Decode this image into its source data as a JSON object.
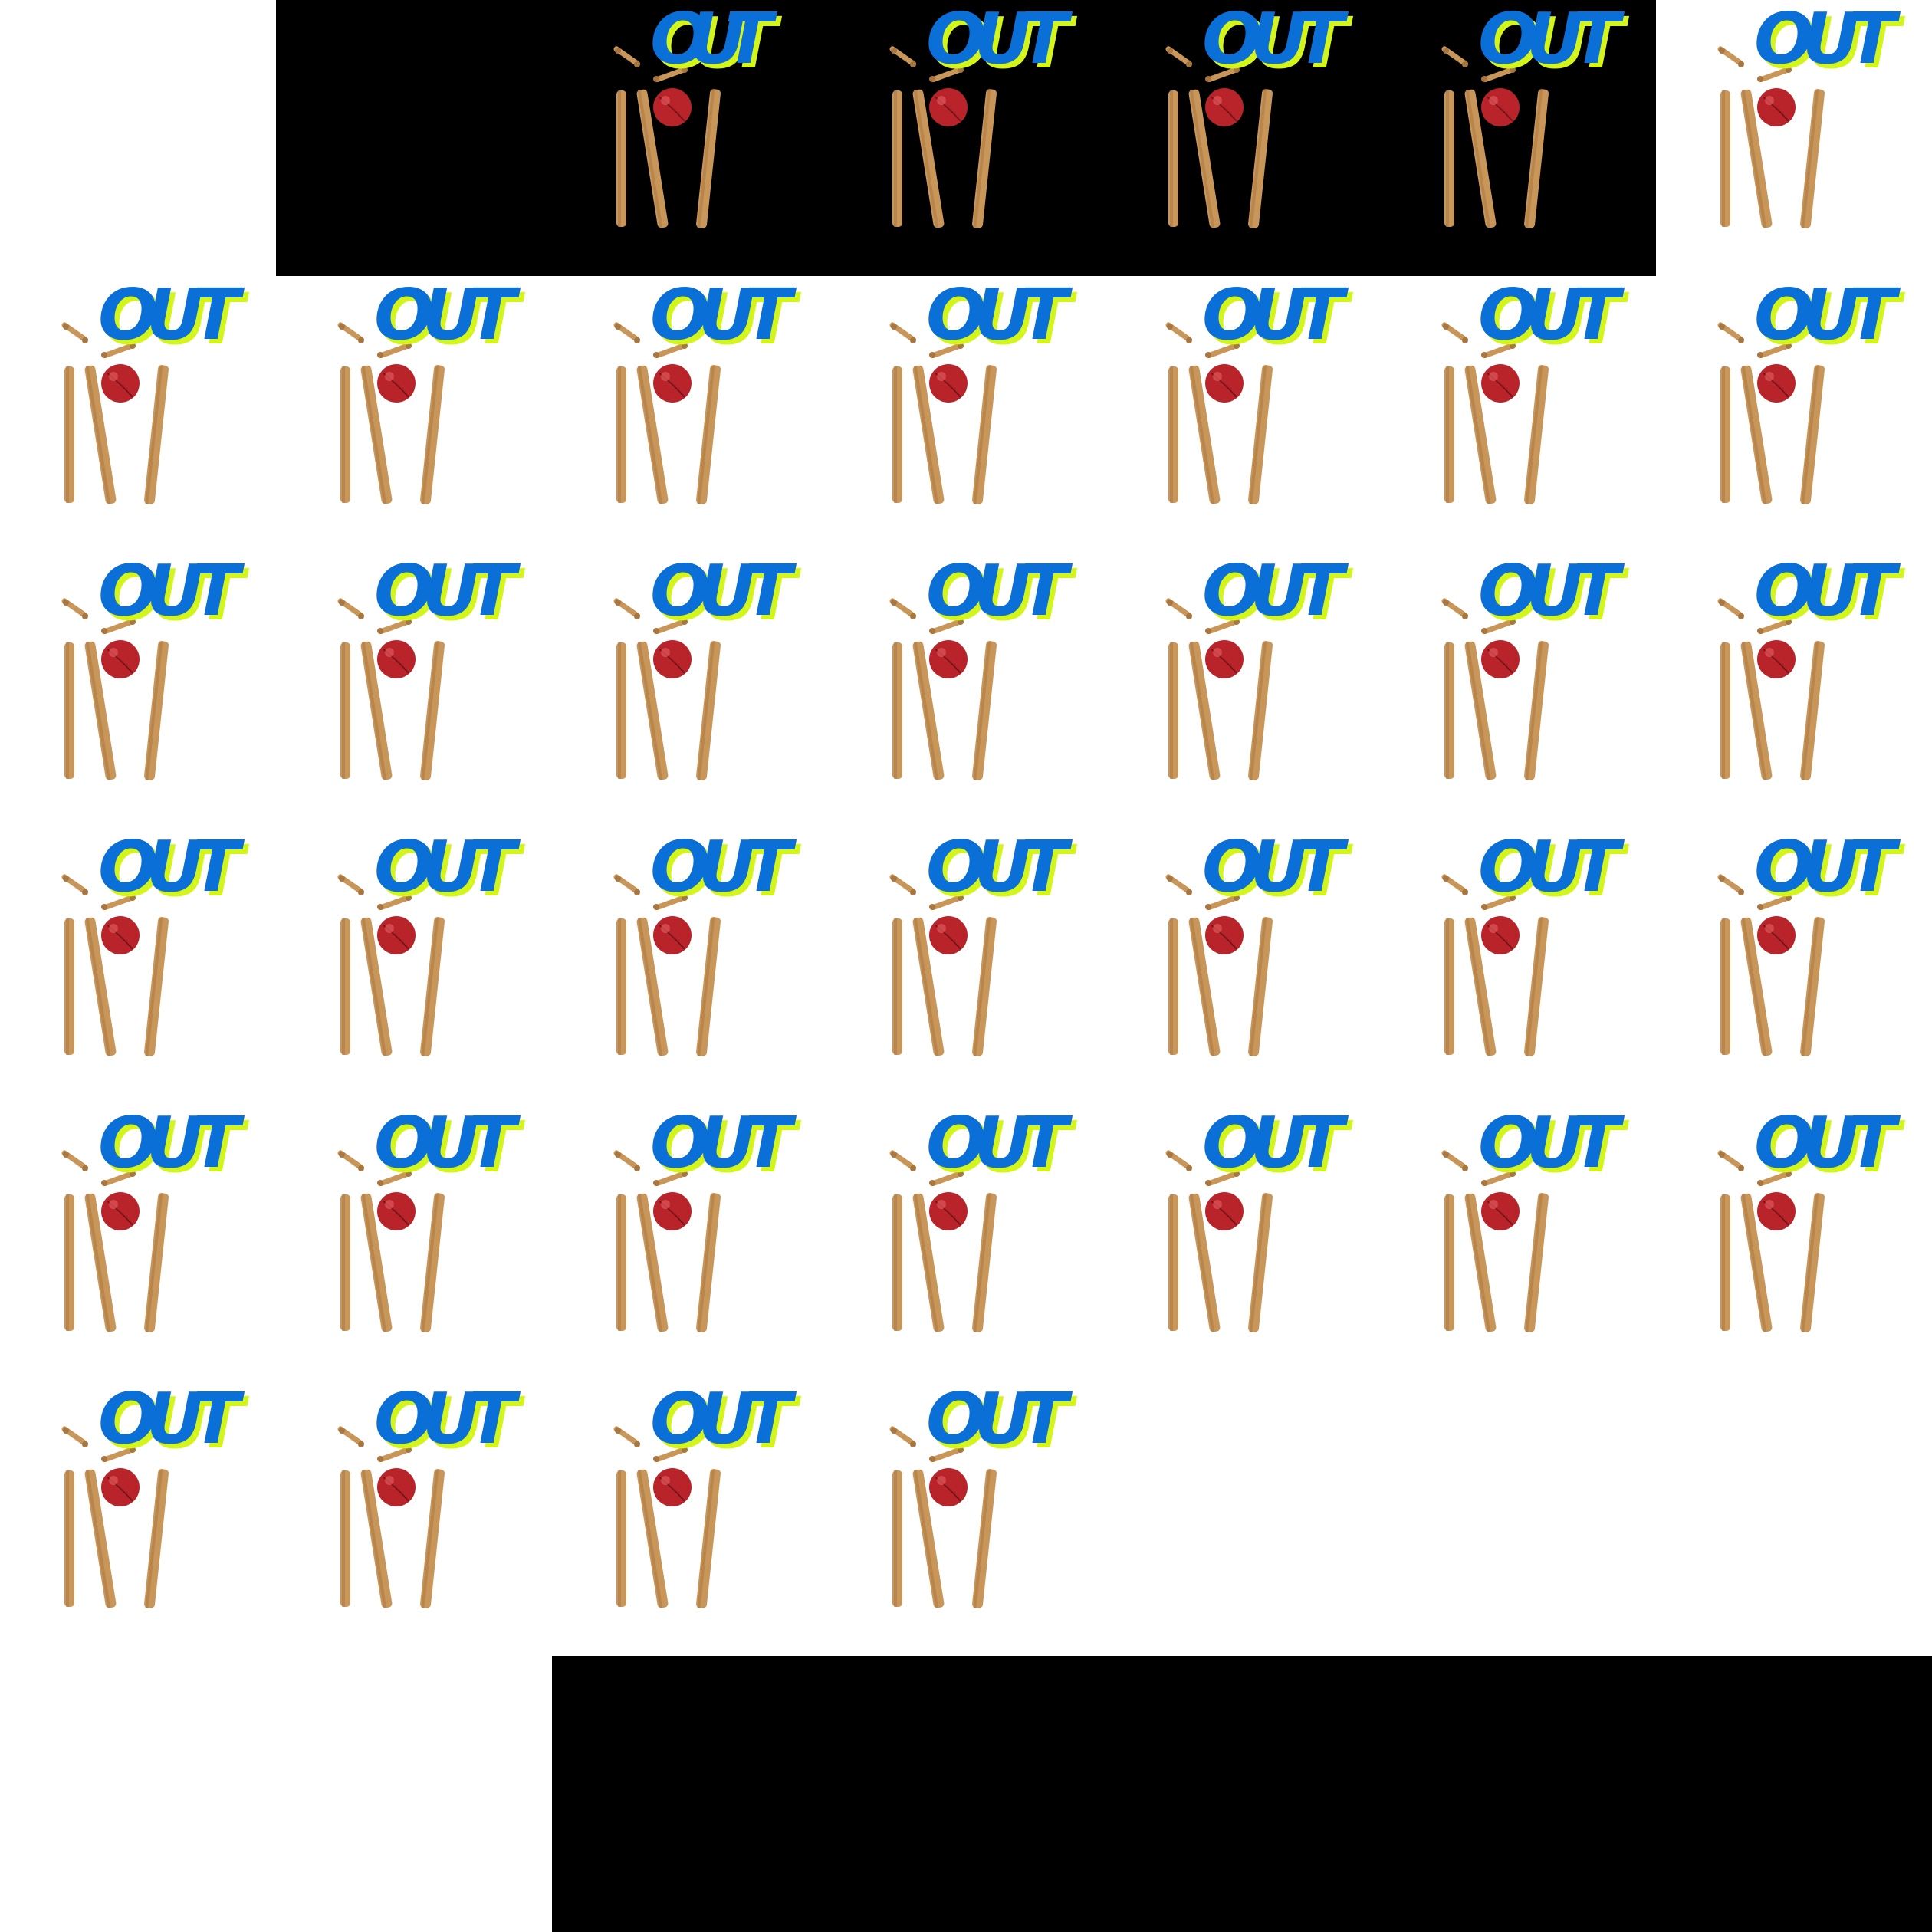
{
  "sprite": {
    "icon": "cricket-out-wicket-icon",
    "text": "OUT",
    "frames": 37,
    "columns": 7,
    "first_frame_text": "OUT"
  },
  "colors": {
    "background": "#ffffff",
    "empty_region": "#000000",
    "text_fill": "#0a6fd6",
    "text_shadow": "#d4f51a",
    "wood": "#c9965a",
    "wood_dark": "#a87640",
    "ball": "#b8242a",
    "ball_highlight": "#e0585c"
  }
}
